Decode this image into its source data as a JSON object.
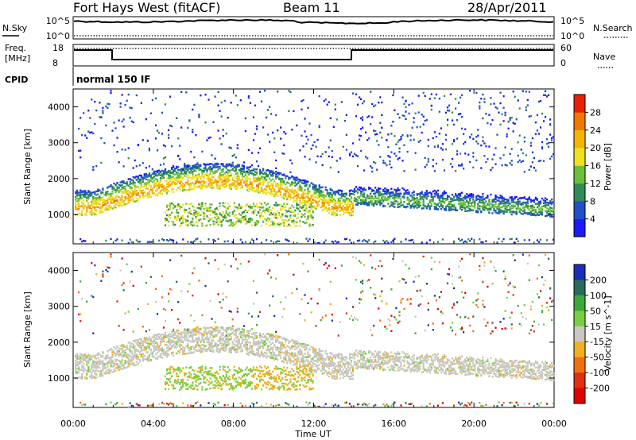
{
  "header": {
    "station": "Fort Hays West (fitACF)",
    "beam": "Beam 11",
    "date": "28/Apr/2011"
  },
  "noise_panel": {
    "left_label": "N.Sky",
    "right_label": "N.Search",
    "ticks_left": [
      "10^5",
      "10^0"
    ],
    "ticks_right": [
      "10^5",
      "10^0"
    ]
  },
  "freq_panel": {
    "left_label_1": "Freq.",
    "left_label_2": "[MHz]",
    "right_label": "Nave",
    "ticks_left": [
      "18",
      "8"
    ],
    "ticks_right": [
      "60",
      "0"
    ]
  },
  "cpid": {
    "label": "CPID",
    "value": "normal 150 IF"
  },
  "chart_data": [
    {
      "type": "heatmap",
      "title": "",
      "xlabel": "",
      "ylabel": "Slant Range [km]",
      "xlim": [
        "00:00",
        "24:00"
      ],
      "ylim": [
        180,
        4500
      ],
      "yticks": [
        "1000",
        "2000",
        "3000",
        "4000"
      ],
      "colorbar": {
        "label": "Power [dB]",
        "ticks": [
          "4",
          "8",
          "12",
          "16",
          "20",
          "24",
          "28"
        ],
        "levels": [
          0,
          4,
          8,
          12,
          16,
          20,
          24,
          28,
          32
        ],
        "colors": [
          "#1a1aff",
          "#2050c8",
          "#2e8b57",
          "#6cbf3a",
          "#f0e020",
          "#f5b400",
          "#f07800",
          "#e82000"
        ]
      },
      "regions": [
        {
          "name": "main-band",
          "t_start": 0.0,
          "t_end": 14.0,
          "range_km": [
            900,
            2300
          ],
          "level_db": 18
        },
        {
          "name": "lower-echo",
          "t_start": 4.5,
          "t_end": 12.0,
          "range_km": [
            700,
            1400
          ],
          "level_db": 14
        },
        {
          "name": "post-gap-band",
          "t_start": 14.0,
          "t_end": 24.0,
          "range_km": [
            1100,
            2100
          ],
          "level_db": 14
        },
        {
          "name": "high-scatter",
          "t_start": 0.3,
          "t_end": 24.0,
          "range_km": [
            2200,
            4500
          ],
          "level_db": 6
        }
      ]
    },
    {
      "type": "heatmap",
      "title": "",
      "xlabel": "Time UT",
      "ylabel": "Slant Range [km]",
      "xlim": [
        "00:00",
        "24:00"
      ],
      "ylim": [
        180,
        4500
      ],
      "xticks": [
        "00:00",
        "04:00",
        "08:00",
        "12:00",
        "16:00",
        "20:00",
        "00:00"
      ],
      "yticks": [
        "1000",
        "2000",
        "3000",
        "4000"
      ],
      "colorbar": {
        "label": "Velocity [m s^-1]",
        "ticks": [
          "200",
          "100",
          "50",
          "15",
          "-15",
          "-50",
          "-100",
          "-200"
        ],
        "colors": [
          "#1c2eb8",
          "#2a6a5a",
          "#3aa83a",
          "#78d040",
          "#c8c8c0",
          "#f0b020",
          "#f07010",
          "#e03010",
          "#e00000"
        ]
      },
      "regions": [
        {
          "name": "ground-scatter",
          "t_start": 0.0,
          "t_end": 24.0,
          "range_km": [
            1100,
            2300
          ],
          "velocity": 0
        },
        {
          "name": "green-echo",
          "t_start": 5.0,
          "t_end": 12.0,
          "range_km": [
            700,
            1400
          ],
          "velocity": 60
        },
        {
          "name": "orange-echo",
          "t_start": 9.0,
          "t_end": 12.0,
          "range_km": [
            750,
            1300
          ],
          "velocity": -60
        }
      ]
    }
  ]
}
